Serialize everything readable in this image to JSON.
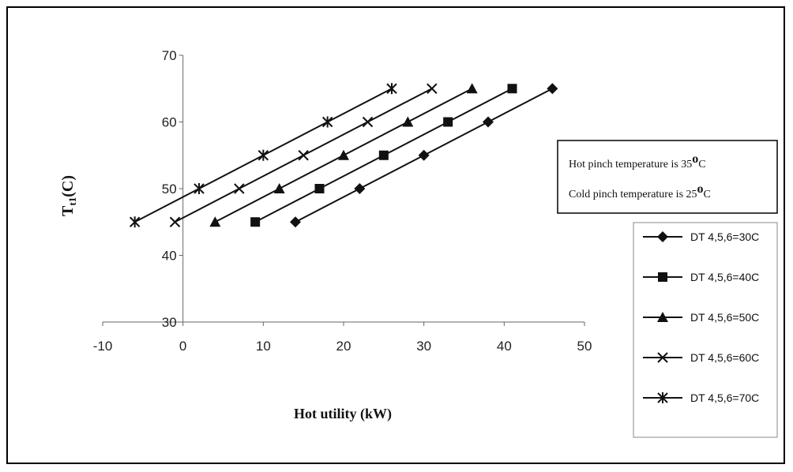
{
  "chart_data": {
    "type": "line",
    "title": "",
    "xlabel": "Hot utility (kW)",
    "ylabel_main": "T",
    "ylabel_sub": "t1",
    "ylabel_unit": "(C)",
    "xlim": [
      -10,
      50
    ],
    "ylim": [
      30,
      70
    ],
    "x_ticks": [
      -10,
      0,
      10,
      20,
      30,
      40,
      50
    ],
    "y_ticks": [
      30,
      40,
      50,
      60,
      70
    ],
    "grid": false,
    "legend_position": "right",
    "y_values": [
      45,
      50,
      55,
      60,
      65
    ],
    "series": [
      {
        "name": "DT 4,5,6=30C",
        "marker": "diamond",
        "x": [
          14,
          22,
          30,
          38,
          46
        ]
      },
      {
        "name": "DT 4,5,6=40C",
        "marker": "square",
        "x": [
          9,
          17,
          25,
          33,
          41
        ]
      },
      {
        "name": "DT 4,5,6=50C",
        "marker": "triangle",
        "x": [
          4,
          12,
          20,
          28,
          36
        ]
      },
      {
        "name": "DT 4,5,6=60C",
        "marker": "x",
        "x": [
          -1,
          7,
          15,
          23,
          31
        ]
      },
      {
        "name": "DT 4,5,6=70C",
        "marker": "star",
        "x": [
          -6,
          2,
          10,
          18,
          26
        ]
      }
    ],
    "annotation": {
      "line1_prefix": "Hot pinch temperature is 35",
      "line2_prefix": "Cold  pinch temperature is 25",
      "degree_symbol": "o",
      "unit_suffix": "C"
    }
  }
}
